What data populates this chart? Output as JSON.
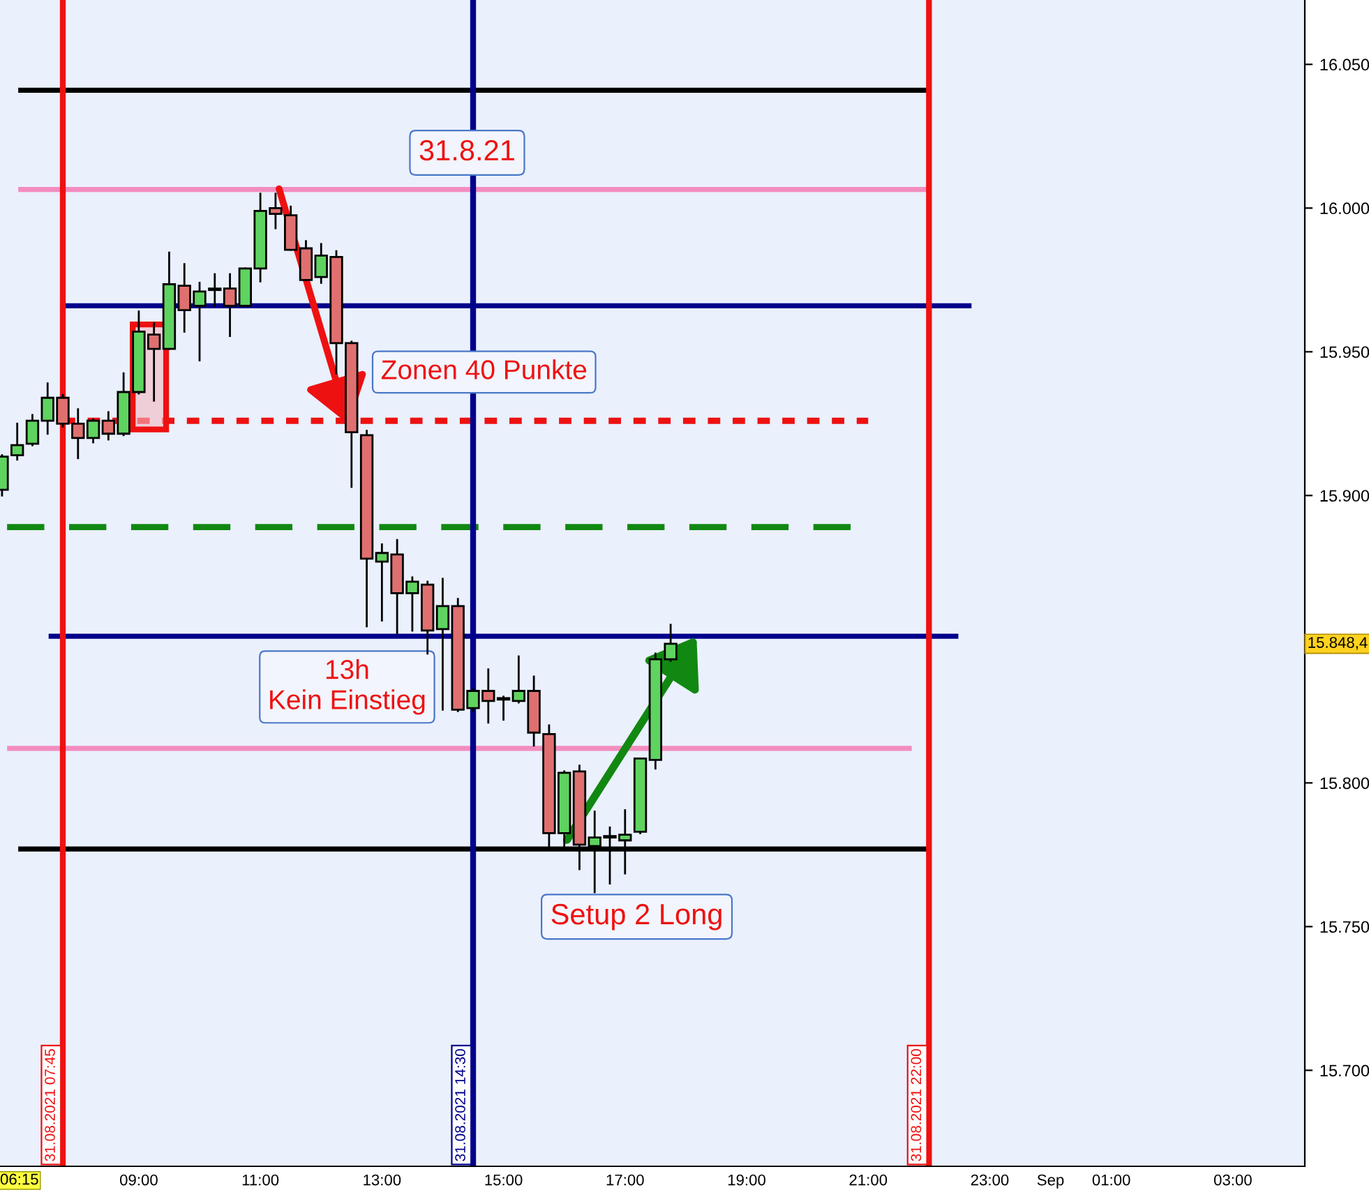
{
  "chart_data": {
    "type": "candlestick",
    "x": [
      "2021-08-31T06:45",
      "2021-08-31T07:00",
      "2021-08-31T07:15",
      "2021-08-31T07:30",
      "2021-08-31T07:45",
      "2021-08-31T08:00",
      "2021-08-31T08:15",
      "2021-08-31T08:30",
      "2021-08-31T08:45",
      "2021-08-31T09:00",
      "2021-08-31T09:15",
      "2021-08-31T09:30",
      "2021-08-31T09:45",
      "2021-08-31T10:00",
      "2021-08-31T10:15",
      "2021-08-31T10:30",
      "2021-08-31T10:45",
      "2021-08-31T11:00",
      "2021-08-31T11:15",
      "2021-08-31T11:30",
      "2021-08-31T11:45",
      "2021-08-31T12:00",
      "2021-08-31T12:15",
      "2021-08-31T12:30",
      "2021-08-31T12:45",
      "2021-08-31T13:00",
      "2021-08-31T13:15",
      "2021-08-31T13:30",
      "2021-08-31T13:45",
      "2021-08-31T14:00",
      "2021-08-31T14:15",
      "2021-08-31T14:30",
      "2021-08-31T14:45",
      "2021-08-31T15:00",
      "2021-08-31T15:15",
      "2021-08-31T15:30",
      "2021-08-31T15:45",
      "2021-08-31T16:00",
      "2021-08-31T16:15",
      "2021-08-31T16:30",
      "2021-08-31T16:45",
      "2021-08-31T17:00",
      "2021-08-31T17:15",
      "2021-08-31T17:30",
      "2021-08-31T17:45"
    ],
    "ohlc": [
      [
        15902,
        15914,
        15900,
        15913.5
      ],
      [
        15914,
        15925,
        15912.5,
        15917.5
      ],
      [
        15918,
        15928,
        15917.5,
        15926
      ],
      [
        15926,
        15939,
        15921.5,
        15934
      ],
      [
        15934,
        15935,
        15924,
        15925
      ],
      [
        15925,
        15930,
        15913,
        15920
      ],
      [
        15920,
        15926.5,
        15918.5,
        15926
      ],
      [
        15926,
        15929,
        15919.5,
        15921.5
      ],
      [
        15921.5,
        15942.5,
        15921,
        15936
      ],
      [
        15936,
        15964,
        15935.5,
        15957
      ],
      [
        15956,
        15960,
        15933,
        15951
      ],
      [
        15951,
        15984.5,
        15951,
        15973.5
      ],
      [
        15973,
        15980.5,
        15957,
        15964.5
      ],
      [
        15966,
        15974,
        15947,
        15971
      ],
      [
        15972,
        15977,
        15966,
        15971.5
      ],
      [
        15972,
        15977,
        15955.5,
        15966
      ],
      [
        15966,
        15979,
        15966,
        15979
      ],
      [
        15979,
        16005,
        15974.5,
        15999
      ],
      [
        16000,
        16005,
        15993,
        15998
      ],
      [
        15997.5,
        16000.5,
        15985.5,
        15985.5
      ],
      [
        15986,
        15988.5,
        15975,
        15975
      ],
      [
        15976,
        15987.5,
        15974,
        15983.5
      ],
      [
        15983,
        15985,
        15942.5,
        15953
      ],
      [
        15953,
        15953.5,
        15903,
        15922
      ],
      [
        15921,
        15922.5,
        15854.5,
        15878
      ],
      [
        15877,
        15883,
        15856.5,
        15880
      ],
      [
        15879.5,
        15884.5,
        15852,
        15866
      ],
      [
        15866,
        15871.5,
        15853,
        15870
      ],
      [
        15869,
        15870,
        15845,
        15853
      ],
      [
        15853.5,
        15871,
        15825.5,
        15861.5
      ],
      [
        15861.5,
        15864,
        15825,
        15825.5
      ],
      [
        15826,
        15832.5,
        15825,
        15832
      ],
      [
        15832,
        15839.5,
        15821,
        15828.5
      ],
      [
        15829.5,
        15830,
        15822,
        15829
      ],
      [
        15828.5,
        15844,
        15828,
        15832
      ],
      [
        15832,
        15837,
        15813,
        15817.5
      ],
      [
        15817,
        15820,
        15778,
        15782.5
      ],
      [
        15782.5,
        15804,
        15778,
        15803.5
      ],
      [
        15804,
        15806,
        15770,
        15778.5
      ],
      [
        15778,
        15790,
        15762,
        15781
      ],
      [
        15781.5,
        15784.5,
        15765,
        15781
      ],
      [
        15780,
        15790.5,
        15768.5,
        15782
      ],
      [
        15783,
        15808.5,
        15782.5,
        15808.5
      ],
      [
        15808,
        15845,
        15805,
        15843
      ],
      [
        15843,
        15855,
        15842.5,
        15848.4
      ]
    ],
    "colors": [
      "#5fd35f",
      "#5fd35f",
      "#5fd35f",
      "#5fd35f",
      "#e07070",
      "#e07070",
      "#5fd35f",
      "#e07070",
      "#5fd35f",
      "#5fd35f",
      "#e07070",
      "#5fd35f",
      "#e07070",
      "#5fd35f",
      "#e07070",
      "#e07070",
      "#5fd35f",
      "#5fd35f",
      "#e07070",
      "#e07070",
      "#e07070",
      "#5fd35f",
      "#e07070",
      "#e07070",
      "#e07070",
      "#5fd35f",
      "#e07070",
      "#5fd35f",
      "#e07070",
      "#5fd35f",
      "#e07070",
      "#5fd35f",
      "#e07070",
      "#e07070",
      "#5fd35f",
      "#e07070",
      "#e07070",
      "#5fd35f",
      "#e07070",
      "#5fd35f",
      "#e07070",
      "#5fd35f",
      "#5fd35f",
      "#5fd35f",
      "#5fd35f"
    ],
    "series": [
      {
        "type": "line",
        "color": "#000000",
        "line_style": "solid",
        "x": [
          "2021-08-31T07:01",
          "2021-08-31T22:00"
        ],
        "values": [
          16041,
          16041
        ]
      },
      {
        "type": "line",
        "color": "#f48cbf",
        "line_style": "solid",
        "x": [
          "2021-08-31T07:01",
          "2021-08-31T22:00"
        ],
        "values": [
          16006.5,
          16006.5
        ]
      },
      {
        "type": "line",
        "color": "#00008b",
        "line_style": "solid",
        "x": [
          "2021-08-31T07:45",
          "2021-08-31T22:42"
        ],
        "values": [
          15966,
          15966
        ]
      },
      {
        "type": "line",
        "color": "#ee1111",
        "line_style": "dotted",
        "x": [
          "2021-08-31T07:45",
          "2021-08-31T21:00"
        ],
        "values": [
          15926,
          15926
        ]
      },
      {
        "type": "line",
        "color": "#118811",
        "line_style": "dashed",
        "x": [
          "2021-08-31T06:50",
          "2021-08-31T20:46"
        ],
        "values": [
          15889,
          15889
        ]
      },
      {
        "type": "line",
        "color": "#00008b",
        "line_style": "solid",
        "x": [
          "2021-08-31T07:31",
          "2021-08-31T22:29"
        ],
        "values": [
          15851,
          15851
        ]
      },
      {
        "type": "line",
        "color": "#f48cbf",
        "line_style": "solid",
        "x": [
          "2021-08-31T06:50",
          "2021-08-31T21:43"
        ],
        "values": [
          15812,
          15812
        ]
      },
      {
        "type": "line",
        "color": "#000000",
        "line_style": "solid",
        "x": [
          "2021-08-31T07:01",
          "2021-08-31T22:00"
        ],
        "values": [
          15777,
          15777
        ]
      }
    ],
    "ref_lines": [
      {
        "axis": "x",
        "value": "2021-08-31T07:45",
        "label": "31.08.2021 07:45",
        "color": "#ee1111"
      },
      {
        "axis": "x",
        "value": "2021-08-31T14:30",
        "label": "31.08.2021 14:30",
        "color": "#00008b"
      },
      {
        "axis": "x",
        "value": "2021-08-31T22:00",
        "label": "31.08.2021 22:00",
        "color": "#ee1111"
      }
    ],
    "xlim": [
      "2021-08-31T06:43",
      "2021-09-01T04:11"
    ],
    "xticks": [
      {
        "value": "2021-08-31T09:00",
        "label": "09:00"
      },
      {
        "value": "2021-08-31T11:00",
        "label": "11:00"
      },
      {
        "value": "2021-08-31T13:00",
        "label": "13:00"
      },
      {
        "value": "2021-08-31T15:00",
        "label": "15:00"
      },
      {
        "value": "2021-08-31T17:00",
        "label": "17:00"
      },
      {
        "value": "2021-08-31T19:00",
        "label": "19:00"
      },
      {
        "value": "2021-08-31T21:00",
        "label": "21:00"
      },
      {
        "value": "2021-08-31T23:00",
        "label": "23:00"
      },
      {
        "value": "2021-09-01",
        "label": "Sep"
      },
      {
        "value": "2021-09-01T01:00",
        "label": "01:00"
      },
      {
        "value": "2021-09-01T03:00",
        "label": "03:00"
      }
    ],
    "ylim": [
      15666.6,
      16072.4
    ],
    "yticks": [
      {
        "value": 15700,
        "label": "15.700"
      },
      {
        "value": 15750,
        "label": "15.750"
      },
      {
        "value": 15800,
        "label": "15.800"
      },
      {
        "value": 15900,
        "label": "15.900"
      },
      {
        "value": 15950,
        "label": "15.950"
      },
      {
        "value": 16000,
        "label": "16.000"
      },
      {
        "value": 16050,
        "label": "16.050"
      }
    ],
    "annotations": [
      "31.8.21",
      "Zonen 40 Punkte",
      "13h\nKein Einstieg",
      "Setup 2 Long",
      "06:15",
      "15.848,4"
    ],
    "grid": false,
    "legend": false
  }
}
